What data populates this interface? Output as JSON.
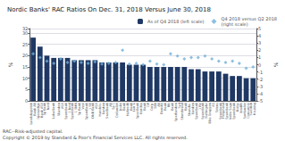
{
  "chart_data": {
    "type": "bar",
    "title": "Nordic Banks' RAC Ratios On Dec. 31, 2018 Versus June 30, 2018",
    "categories": [
      "Landshypotek\nBank AB",
      "Gjensidige\nBank ASA",
      "Sp Bank\nNord",
      "Lokalbank",
      "Sbanken\nASA",
      "Sparebank\n1 Nord",
      "Sparebank\n1 SMN",
      "Sp Bank\nVest",
      "SpareBank\n1 SR",
      "DNB Bank\nASA",
      "Handels-\nbanken",
      "Swedbank\nAB",
      "Sp 1\nOstlandet",
      "Jyske\nBank",
      "Nykredit\nBank",
      "Lan &\nSpar Bank",
      "Nordea\nBank",
      "OP\nCorp.",
      "SEB\nAB",
      "Danske\nBank",
      "BN\nBank",
      "Sparbanken\nSyd",
      "Storebrand\nBank",
      "Skandia-\nbanken",
      "Sparebank\n1 BV",
      "Sparebank\nHallingdal",
      "Eika Gruppen\nAS",
      "Totens\nSparebank",
      "Helgeland\nSparebank",
      "Indre Sogn\nSparebank",
      "Bolig-\nkreditt",
      "Santander\nConsumer",
      "Swedish\nHousing"
    ],
    "series": [
      {
        "name": "As of Q4 2018 (left scale)",
        "type": "bar",
        "color": "#1f3864",
        "values": [
          28,
          24,
          20,
          19,
          19,
          19,
          18,
          18,
          18,
          18,
          17,
          17,
          17,
          17,
          16,
          16,
          16,
          15,
          15,
          15,
          15,
          15,
          15,
          14,
          14,
          13,
          13,
          13,
          12,
          11,
          11,
          10,
          10
        ]
      },
      {
        "name": "Q4 2018 versus Q2 2018\n(right scale)",
        "type": "scatter",
        "axis": "y2",
        "marker": "diamond",
        "color": "#70b0d8",
        "values": [
          1.5,
          1.0,
          0.5,
          0.2,
          0.8,
          0.3,
          0.5,
          0.3,
          0.2,
          0.4,
          0.1,
          0.2,
          0.3,
          2.0,
          0.1,
          0.2,
          0.0,
          0.5,
          0.1,
          0.0,
          1.5,
          1.2,
          0.8,
          1.0,
          1.0,
          1.2,
          0.8,
          0.5,
          0.3,
          0.5,
          0.2,
          -0.5,
          -0.3
        ]
      }
    ],
    "ylim": [
      0,
      32
    ],
    "yticks": [
      0,
      5,
      10,
      15,
      20,
      25,
      30
    ],
    "y2lim": [
      -5,
      5
    ],
    "y2ticks": [
      -5,
      -4,
      -3,
      -2,
      -1,
      0,
      1,
      2,
      3,
      4,
      5
    ],
    "ylabel": "%",
    "y2label": "%",
    "annotations": [
      "RAC--Risk-adjusted capital.",
      "Copyright © 2019 by Standard & Poor's Financial Services LLC. All rights reserved."
    ],
    "grid": true,
    "legend": "right"
  }
}
